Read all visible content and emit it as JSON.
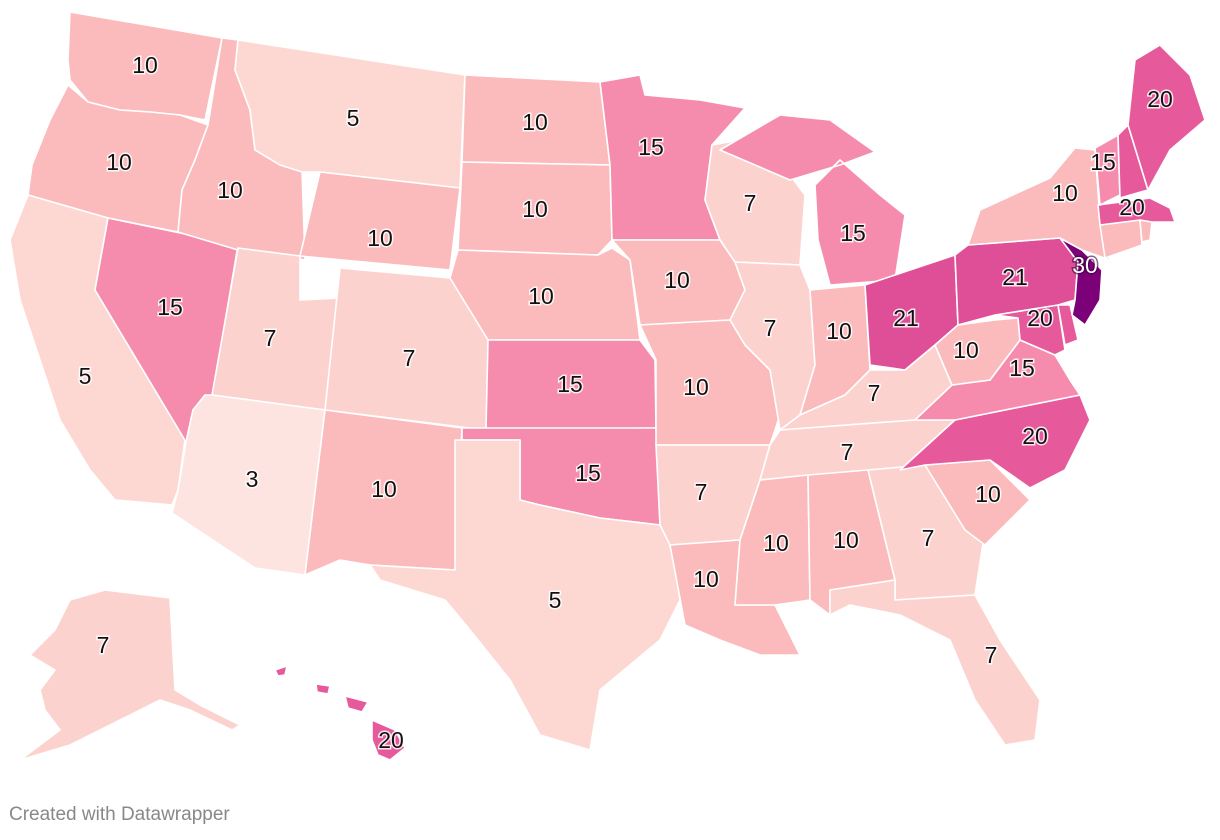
{
  "footer": {
    "credit": "Created with Datawrapper"
  },
  "colors": {
    "3": "#fde4e0",
    "5": "#fdd8d3",
    "7": "#fcd2ce",
    "10": "#fbbabb",
    "15": "#f68cad",
    "20": "#e65a9c",
    "21": "#de4f98",
    "30": "#7c0077"
  },
  "states": [
    {
      "name": "washington",
      "value": "10"
    },
    {
      "name": "oregon",
      "value": "10"
    },
    {
      "name": "california",
      "value": "5"
    },
    {
      "name": "nevada",
      "value": "15"
    },
    {
      "name": "idaho",
      "value": "10"
    },
    {
      "name": "montana",
      "value": "5"
    },
    {
      "name": "wyoming",
      "value": "10"
    },
    {
      "name": "utah",
      "value": "7"
    },
    {
      "name": "arizona",
      "value": "3"
    },
    {
      "name": "colorado",
      "value": "7"
    },
    {
      "name": "new-mexico",
      "value": "10"
    },
    {
      "name": "north-dakota",
      "value": "10"
    },
    {
      "name": "south-dakota",
      "value": "10"
    },
    {
      "name": "nebraska",
      "value": "10"
    },
    {
      "name": "kansas",
      "value": "15"
    },
    {
      "name": "oklahoma",
      "value": "15"
    },
    {
      "name": "texas",
      "value": "5"
    },
    {
      "name": "minnesota",
      "value": "15"
    },
    {
      "name": "iowa",
      "value": "10"
    },
    {
      "name": "missouri",
      "value": "10"
    },
    {
      "name": "arkansas",
      "value": "7"
    },
    {
      "name": "louisiana",
      "value": "10"
    },
    {
      "name": "wisconsin",
      "value": "7"
    },
    {
      "name": "illinois",
      "value": "7"
    },
    {
      "name": "michigan",
      "value": "15"
    },
    {
      "name": "indiana",
      "value": "10"
    },
    {
      "name": "ohio",
      "value": "21"
    },
    {
      "name": "kentucky",
      "value": "7"
    },
    {
      "name": "tennessee",
      "value": "7"
    },
    {
      "name": "mississippi",
      "value": "10"
    },
    {
      "name": "alabama",
      "value": "10"
    },
    {
      "name": "georgia",
      "value": "7"
    },
    {
      "name": "florida",
      "value": "7"
    },
    {
      "name": "south-carolina",
      "value": "10"
    },
    {
      "name": "north-carolina",
      "value": "20"
    },
    {
      "name": "virginia",
      "value": "15"
    },
    {
      "name": "west-virginia",
      "value": "10"
    },
    {
      "name": "maryland",
      "value": "20"
    },
    {
      "name": "delaware",
      "value": "20"
    },
    {
      "name": "new-jersey",
      "value": "30"
    },
    {
      "name": "pennsylvania",
      "value": "21"
    },
    {
      "name": "new-york",
      "value": "10"
    },
    {
      "name": "connecticut",
      "value": "10"
    },
    {
      "name": "rhode-island",
      "value": "10"
    },
    {
      "name": "massachusetts",
      "value": "20"
    },
    {
      "name": "vermont",
      "value": "15"
    },
    {
      "name": "new-hampshire",
      "value": "20"
    },
    {
      "name": "maine",
      "value": "20"
    },
    {
      "name": "alaska",
      "value": "7"
    },
    {
      "name": "hawaii",
      "value": "20"
    }
  ]
}
